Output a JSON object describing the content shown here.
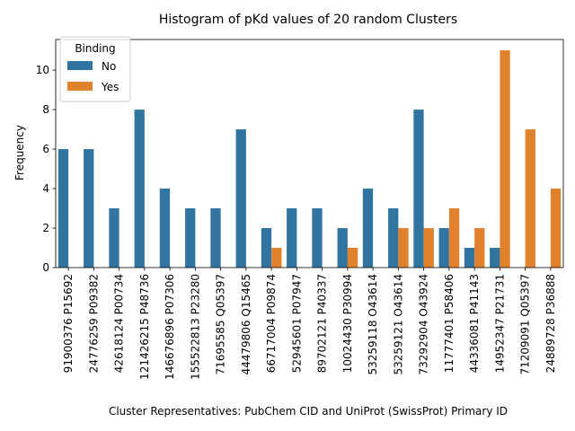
{
  "chart_data": {
    "type": "bar",
    "title": "Histogram of pKd values of 20 random Clusters",
    "xlabel": "Cluster Representatives: PubChem CID and UniProt (SwissProt) Primary ID",
    "ylabel": "Frequency",
    "ylim": [
      0,
      11.55
    ],
    "yticks": [
      0,
      2,
      4,
      6,
      8,
      10
    ],
    "legend": {
      "title": "Binding",
      "placement": "top-left"
    },
    "categories": [
      "91900376 P15692",
      "24776259 P09382",
      "42618124 P00734",
      "121426215 P48736",
      "146676896 P07306",
      "155522813 P23280",
      "71695585 Q05397",
      "44479806 Q15465",
      "66717004 P09874",
      "52945601 P07947",
      "89702121 P40337",
      "10024430 P30994",
      "53259118 O43614",
      "53259121 O43614",
      "73292904 O43924",
      "11777401 P58406",
      "44336081 P41143",
      "14952347 P21731",
      "71209091 Q05397",
      "24889728 P36888"
    ],
    "series": [
      {
        "name": "No",
        "color": "#3274a1",
        "values": [
          6,
          6,
          3,
          8,
          4,
          3,
          3,
          7,
          2,
          3,
          3,
          2,
          4,
          3,
          8,
          2,
          1,
          1,
          0,
          0
        ]
      },
      {
        "name": "Yes",
        "color": "#e1812c",
        "values": [
          0,
          0,
          0,
          0,
          0,
          0,
          0,
          0,
          1,
          0,
          0,
          1,
          0,
          2,
          2,
          3,
          2,
          11,
          7,
          4
        ]
      }
    ]
  }
}
